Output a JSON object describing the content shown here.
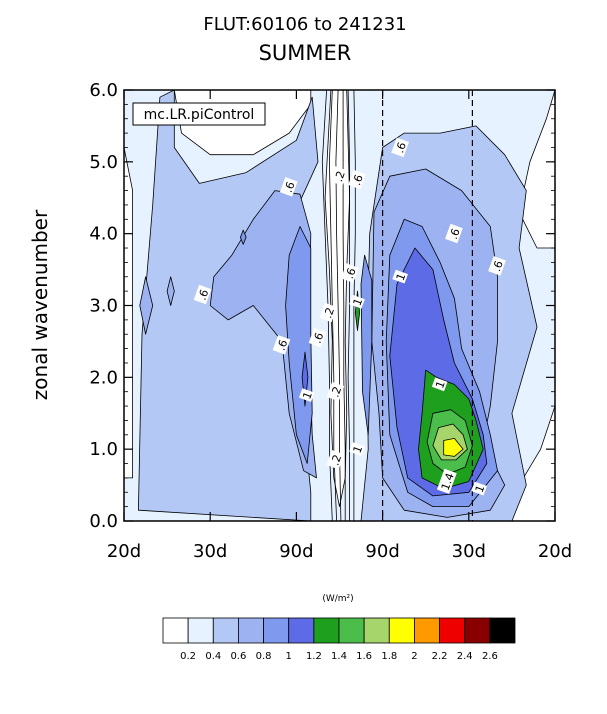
{
  "chart_data": {
    "type": "heatmap",
    "title": "FLUT:60106 to 241231",
    "subtitle": "SUMMER",
    "ylabel": "zonal wavenumber",
    "annotation": "mc.LR.piControl",
    "xlim": [
      0,
      6
    ],
    "ylim": [
      0,
      6
    ],
    "x_tick_labels": [
      "20d",
      "30d",
      "90d",
      "90d",
      "30d",
      "20d"
    ],
    "y_tick_labels": [
      "0.0",
      "1.0",
      "2.0",
      "3.0",
      "4.0",
      "5.0",
      "6.0"
    ],
    "y_ticks": [
      0,
      1,
      2,
      3,
      4,
      5,
      6
    ],
    "dashed_lines_x": [
      3.6,
      4.85
    ],
    "contour_labels": [
      {
        "text": ".6",
        "x": 1.1,
        "y": 3.15
      },
      {
        "text": ".6",
        "x": 2.3,
        "y": 4.65
      },
      {
        "text": ".6",
        "x": 2.2,
        "y": 2.45
      },
      {
        "text": ".6",
        "x": 2.7,
        "y": 2.55
      },
      {
        "text": "1",
        "x": 2.55,
        "y": 1.75
      },
      {
        "text": ".2",
        "x": 2.85,
        "y": 2.9
      },
      {
        "text": ".2",
        "x": 2.95,
        "y": 1.8
      },
      {
        "text": ".2",
        "x": 2.95,
        "y": 0.85
      },
      {
        "text": ".2",
        "x": 3.0,
        "y": 4.8
      },
      {
        "text": ".6",
        "x": 3.25,
        "y": 4.75
      },
      {
        "text": ".6",
        "x": 3.15,
        "y": 3.45
      },
      {
        "text": "1",
        "x": 3.25,
        "y": 3.05
      },
      {
        "text": "1",
        "x": 3.25,
        "y": 1.0
      },
      {
        "text": ".6",
        "x": 3.85,
        "y": 5.2
      },
      {
        "text": "1",
        "x": 3.85,
        "y": 3.4
      },
      {
        "text": ".6",
        "x": 4.6,
        "y": 4.0
      },
      {
        "text": ".6",
        "x": 5.2,
        "y": 3.55
      },
      {
        "text": "1",
        "x": 4.4,
        "y": 1.9
      },
      {
        "text": "1.4",
        "x": 4.5,
        "y": 0.55
      },
      {
        "text": "1",
        "x": 4.95,
        "y": 0.45
      }
    ],
    "colorbar": {
      "unit_label": "(W/m²)",
      "colors": [
        "#ffffff",
        "#e6f2ff",
        "#b3c8f5",
        "#9db2f0",
        "#7f99ee",
        "#5e6be6",
        "#1ea01e",
        "#4bbd4b",
        "#a6d66b",
        "#ffff00",
        "#ff9900",
        "#ee0000",
        "#880000",
        "#000000"
      ],
      "labels": [
        "0.2",
        "0.4",
        "0.6",
        "0.8",
        "1",
        "1.2",
        "1.4",
        "1.6",
        "1.8",
        "2",
        "2.2",
        "2.4",
        "2.6"
      ]
    },
    "regions": [
      {
        "level": 0.4,
        "points": [
          [
            0,
            6
          ],
          [
            0,
            0
          ],
          [
            6,
            0
          ],
          [
            6,
            6
          ]
        ]
      },
      {
        "level": 0.2,
        "points": [
          [
            0,
            0.6
          ],
          [
            0,
            5.2
          ],
          [
            0.12,
            4.6
          ],
          [
            0.12,
            0.6
          ]
        ]
      },
      {
        "level": 0.2,
        "points": [
          [
            5.88,
            5.6
          ],
          [
            5.65,
            5.0
          ],
          [
            5.5,
            4.3
          ],
          [
            5.75,
            3.8
          ],
          [
            6,
            3.8
          ],
          [
            6,
            6
          ]
        ]
      },
      {
        "level": 0.2,
        "points": [
          [
            5.2,
            0
          ],
          [
            6,
            0
          ],
          [
            6,
            1.6
          ],
          [
            5.8,
            1.0
          ]
        ]
      },
      {
        "level": 0.2,
        "points": [
          [
            0.7,
            6
          ],
          [
            0.8,
            5.4
          ],
          [
            1.2,
            5.1
          ],
          [
            1.8,
            5.1
          ],
          [
            2.3,
            5.4
          ],
          [
            2.6,
            5.8
          ],
          [
            2.6,
            6
          ]
        ]
      },
      {
        "level": 0.2,
        "points": [
          [
            0.65,
            1.2
          ],
          [
            0.75,
            0.9
          ],
          [
            1.05,
            0.8
          ],
          [
            1.2,
            1.0
          ],
          [
            1.05,
            1.3
          ],
          [
            0.8,
            1.35
          ]
        ]
      },
      {
        "level": 0.2,
        "points": [
          [
            1.22,
            2.05
          ],
          [
            1.3,
            1.8
          ],
          [
            1.38,
            2.05
          ],
          [
            1.3,
            2.3
          ]
        ]
      },
      {
        "level": 0.2,
        "points": [
          [
            2.88,
            6
          ],
          [
            2.8,
            4.5
          ],
          [
            2.86,
            3.5
          ],
          [
            2.9,
            2.5
          ],
          [
            2.88,
            1.5
          ],
          [
            2.92,
            0.6
          ],
          [
            3.0,
            0.2
          ],
          [
            3.08,
            0.6
          ],
          [
            3.1,
            1.5
          ],
          [
            3.08,
            2.5
          ],
          [
            3.1,
            3.5
          ],
          [
            3.14,
            4.5
          ],
          [
            3.1,
            6
          ]
        ]
      },
      {
        "level": 0.6,
        "points": [
          [
            0.2,
            0.15
          ],
          [
            0.25,
            2.6
          ],
          [
            0.4,
            4.4
          ],
          [
            0.5,
            5.9
          ],
          [
            0.7,
            6
          ],
          [
            0.7,
            5.2
          ],
          [
            1.05,
            4.7
          ],
          [
            1.7,
            4.85
          ],
          [
            2.4,
            5.3
          ],
          [
            2.62,
            5.9
          ],
          [
            2.7,
            5.0
          ],
          [
            2.45,
            4.45
          ],
          [
            2.55,
            3.5
          ],
          [
            2.6,
            2.5
          ],
          [
            2.5,
            1.4
          ],
          [
            2.6,
            0.4
          ],
          [
            2.6,
            0
          ]
        ]
      },
      {
        "level": 0.6,
        "points": [
          [
            3.3,
            0
          ],
          [
            3.4,
            1.0
          ],
          [
            3.38,
            2.5
          ],
          [
            3.42,
            4.0
          ],
          [
            3.6,
            5.2
          ],
          [
            3.9,
            5.4
          ],
          [
            4.4,
            5.4
          ],
          [
            4.9,
            5.5
          ],
          [
            5.3,
            5.1
          ],
          [
            5.6,
            4.6
          ],
          [
            5.5,
            3.8
          ],
          [
            5.75,
            2.7
          ],
          [
            5.4,
            1.5
          ],
          [
            5.6,
            0.5
          ],
          [
            5.4,
            0
          ]
        ]
      },
      {
        "level": 0.8,
        "points": [
          [
            1.2,
            3.0
          ],
          [
            1.25,
            3.4
          ],
          [
            1.5,
            3.7
          ],
          [
            1.8,
            4.2
          ],
          [
            2.1,
            4.6
          ],
          [
            2.45,
            4.55
          ],
          [
            2.6,
            4.0
          ],
          [
            2.58,
            2.5
          ],
          [
            2.62,
            1.2
          ],
          [
            2.68,
            0.6
          ],
          [
            2.5,
            0.7
          ],
          [
            2.3,
            1.5
          ],
          [
            2.2,
            2.5
          ],
          [
            1.8,
            3.0
          ],
          [
            1.45,
            2.8
          ]
        ]
      },
      {
        "level": 0.8,
        "points": [
          [
            3.45,
            2.5
          ],
          [
            3.48,
            4.3
          ],
          [
            3.7,
            4.8
          ],
          [
            4.2,
            4.9
          ],
          [
            4.7,
            4.6
          ],
          [
            5.1,
            4.1
          ],
          [
            5.2,
            3.4
          ],
          [
            5.2,
            2.5
          ],
          [
            5.1,
            1.6
          ],
          [
            5.0,
            1.1
          ],
          [
            5.3,
            0.5
          ],
          [
            5.1,
            0.15
          ],
          [
            4.5,
            0.05
          ],
          [
            3.9,
            0.15
          ],
          [
            3.6,
            0.6
          ],
          [
            3.55,
            1.5
          ]
        ]
      },
      {
        "level": 0.8,
        "points": [
          [
            0.22,
            3.0
          ],
          [
            0.3,
            3.4
          ],
          [
            0.4,
            3.0
          ],
          [
            0.3,
            2.6
          ]
        ]
      },
      {
        "level": 0.8,
        "points": [
          [
            0.6,
            3.2
          ],
          [
            0.65,
            3.0
          ],
          [
            0.7,
            3.2
          ],
          [
            0.65,
            3.4
          ]
        ]
      },
      {
        "level": 1.0,
        "points": [
          [
            2.3,
            3.7
          ],
          [
            2.45,
            4.1
          ],
          [
            2.6,
            3.8
          ],
          [
            2.6,
            2.6
          ],
          [
            2.62,
            1.5
          ],
          [
            2.55,
            0.8
          ],
          [
            2.4,
            1.2
          ],
          [
            2.3,
            2.2
          ],
          [
            2.25,
            3.0
          ]
        ]
      },
      {
        "level": 1.0,
        "points": [
          [
            3.3,
            3.3
          ],
          [
            3.35,
            3.7
          ],
          [
            3.45,
            3.35
          ],
          [
            3.45,
            2.5
          ],
          [
            3.4,
            1.2
          ],
          [
            3.32,
            1.8
          ]
        ]
      },
      {
        "level": 1.0,
        "points": [
          [
            3.7,
            3.7
          ],
          [
            3.9,
            4.2
          ],
          [
            4.15,
            4.1
          ],
          [
            4.4,
            3.6
          ],
          [
            4.6,
            3.1
          ],
          [
            4.7,
            2.4
          ],
          [
            4.95,
            1.8
          ],
          [
            5.1,
            1.2
          ],
          [
            5.2,
            0.7
          ],
          [
            4.8,
            0.2
          ],
          [
            4.3,
            0.2
          ],
          [
            3.95,
            0.4
          ],
          [
            3.7,
            1.2
          ],
          [
            3.65,
            2.5
          ]
        ]
      },
      {
        "level": 1.0,
        "points": [
          [
            1.62,
            3.95
          ],
          [
            1.66,
            4.05
          ],
          [
            1.7,
            3.95
          ],
          [
            1.66,
            3.85
          ]
        ]
      },
      {
        "level": 1.2,
        "points": [
          [
            2.48,
            2.0
          ],
          [
            2.52,
            2.35
          ],
          [
            2.56,
            2.0
          ],
          [
            2.52,
            1.6
          ]
        ]
      },
      {
        "level": 1.2,
        "points": [
          [
            3.8,
            3.3
          ],
          [
            4.05,
            3.8
          ],
          [
            4.3,
            3.5
          ],
          [
            4.45,
            2.8
          ],
          [
            4.6,
            2.2
          ],
          [
            4.85,
            1.7
          ],
          [
            5.0,
            1.2
          ],
          [
            5.05,
            0.8
          ],
          [
            4.8,
            0.4
          ],
          [
            4.3,
            0.35
          ],
          [
            3.95,
            0.6
          ],
          [
            3.8,
            1.3
          ],
          [
            3.7,
            2.3
          ]
        ]
      },
      {
        "level": 1.4,
        "points": [
          [
            4.2,
            2.1
          ],
          [
            4.35,
            2.0
          ],
          [
            4.6,
            1.9
          ],
          [
            4.8,
            1.7
          ],
          [
            4.9,
            1.4
          ],
          [
            5.0,
            1.0
          ],
          [
            4.8,
            0.55
          ],
          [
            4.45,
            0.45
          ],
          [
            4.15,
            0.6
          ],
          [
            4.1,
            1.0
          ],
          [
            4.15,
            1.5
          ]
        ]
      },
      {
        "level": 1.4,
        "points": [
          [
            3.22,
            2.9
          ],
          [
            3.25,
            3.2
          ],
          [
            3.28,
            2.9
          ],
          [
            3.25,
            2.65
          ]
        ]
      },
      {
        "level": 1.6,
        "points": [
          [
            4.3,
            1.5
          ],
          [
            4.55,
            1.55
          ],
          [
            4.75,
            1.4
          ],
          [
            4.85,
            1.05
          ],
          [
            4.75,
            0.75
          ],
          [
            4.5,
            0.65
          ],
          [
            4.3,
            0.8
          ],
          [
            4.22,
            1.1
          ]
        ]
      },
      {
        "level": 1.8,
        "points": [
          [
            4.38,
            1.3
          ],
          [
            4.58,
            1.35
          ],
          [
            4.72,
            1.2
          ],
          [
            4.78,
            1.0
          ],
          [
            4.62,
            0.85
          ],
          [
            4.42,
            0.85
          ],
          [
            4.3,
            1.05
          ]
        ]
      },
      {
        "level": 2.0,
        "points": [
          [
            4.45,
            1.12
          ],
          [
            4.6,
            1.15
          ],
          [
            4.72,
            1.0
          ],
          [
            4.6,
            0.9
          ],
          [
            4.45,
            0.92
          ]
        ]
      }
    ],
    "contour_lines": [
      {
        "level": 0.2,
        "points": [
          [
            2.82,
            6
          ],
          [
            2.76,
            5
          ],
          [
            2.8,
            4
          ],
          [
            2.84,
            3
          ],
          [
            2.86,
            2
          ],
          [
            2.86,
            1
          ],
          [
            2.9,
            0
          ]
        ]
      },
      {
        "level": 0.2,
        "points": [
          [
            2.9,
            6
          ],
          [
            2.86,
            5
          ],
          [
            2.88,
            4
          ],
          [
            2.9,
            3
          ],
          [
            2.92,
            2
          ],
          [
            2.92,
            1
          ],
          [
            2.96,
            0
          ]
        ]
      },
      {
        "level": 0.2,
        "points": [
          [
            2.98,
            6
          ],
          [
            2.95,
            5
          ],
          [
            2.96,
            4
          ],
          [
            2.98,
            3
          ],
          [
            3.0,
            2
          ],
          [
            3.0,
            1
          ],
          [
            3.02,
            0
          ]
        ]
      },
      {
        "level": 0.2,
        "points": [
          [
            3.05,
            6
          ],
          [
            3.05,
            5
          ],
          [
            3.05,
            4
          ],
          [
            3.06,
            3
          ],
          [
            3.06,
            2
          ],
          [
            3.08,
            1
          ],
          [
            3.08,
            0
          ]
        ]
      },
      {
        "level": 0.2,
        "points": [
          [
            3.12,
            6
          ],
          [
            3.14,
            5
          ],
          [
            3.14,
            4
          ],
          [
            3.14,
            3
          ],
          [
            3.12,
            2
          ],
          [
            3.14,
            1
          ],
          [
            3.14,
            0
          ]
        ]
      },
      {
        "level": 0.2,
        "points": [
          [
            3.2,
            6
          ],
          [
            3.22,
            5
          ],
          [
            3.22,
            4
          ],
          [
            3.2,
            3
          ],
          [
            3.2,
            2
          ],
          [
            3.2,
            1
          ],
          [
            3.2,
            0
          ]
        ]
      }
    ]
  }
}
